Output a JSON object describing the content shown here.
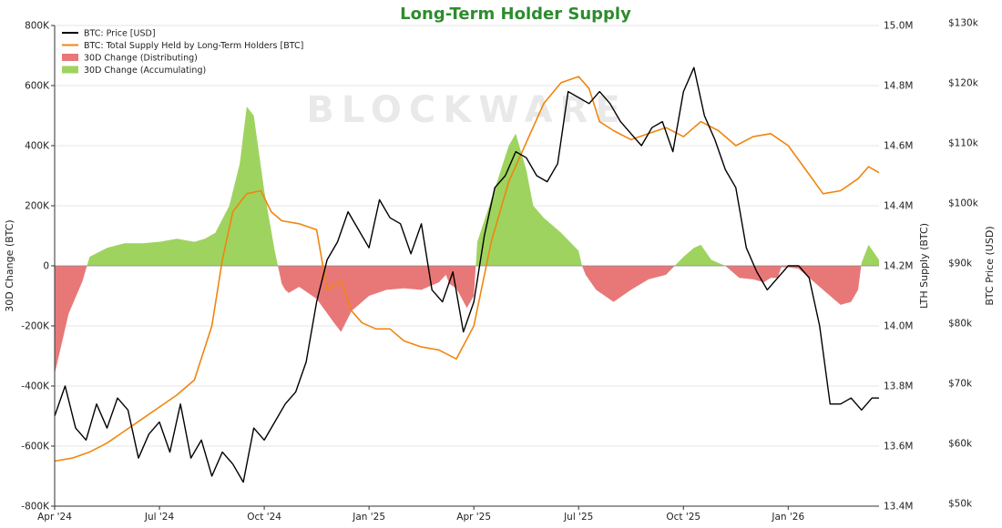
{
  "chart_data": {
    "type": "combo",
    "title": "Long-Term Holder Supply",
    "title_color": "#2e8b2e",
    "watermark": "BLOCKWARE",
    "legend": [
      {
        "label": "BTC: Price [USD]",
        "kind": "line",
        "color": "#000000"
      },
      {
        "label": "BTC: Total Supply Held by Long-Term Holders [BTC]",
        "kind": "line",
        "color": "#f0850f"
      },
      {
        "label": "30D Change (Distributing)",
        "kind": "area",
        "color": "#e87878"
      },
      {
        "label": "30D Change (Accumulating)",
        "kind": "area",
        "color": "#9fd35f"
      }
    ],
    "x_tick_labels": [
      "Apr '24",
      "Jul '24",
      "Oct '24",
      "Jan '25",
      "Apr '25",
      "Jul '25",
      "Oct '25",
      "Jan '26"
    ],
    "x_tick_months": [
      0,
      3,
      6,
      9,
      12,
      15,
      18,
      21
    ],
    "x_range_months": [
      0,
      23.6
    ],
    "left_axis": {
      "label": "30D Change (BTC)",
      "ylim": [
        -800000,
        800000
      ],
      "ticks": [
        800000,
        600000,
        400000,
        200000,
        0,
        -200000,
        -400000,
        -600000,
        -800000
      ],
      "tick_labels": [
        "800K",
        "600K",
        "400K",
        "200K",
        "0",
        "-200K",
        "-400K",
        "-600K",
        "-800K"
      ]
    },
    "mid_axis": {
      "label": "LTH Supply (BTC)",
      "ylim": [
        13.4,
        15.0
      ],
      "ticks": [
        15.0,
        14.8,
        14.6,
        14.4,
        14.2,
        14.0,
        13.8,
        13.6,
        13.4
      ],
      "tick_labels": [
        "15.0M",
        "14.8M",
        "14.6M",
        "14.4M",
        "14.2M",
        "14.0M",
        "13.8M",
        "13.6M",
        "13.4M"
      ]
    },
    "right_axis": {
      "label": "BTC Price (USD)",
      "ylim": [
        50000,
        130000
      ],
      "ticks": [
        130000,
        120000,
        110000,
        100000,
        90000,
        80000,
        70000,
        60000,
        50000
      ],
      "tick_labels": [
        "$130k",
        "$120k",
        "$110k",
        "$100k",
        "$90k",
        "$80k",
        "$70k",
        "$60k",
        "$50k"
      ]
    },
    "series": [
      {
        "name": "BTC: Price [USD]",
        "axis": "right",
        "color": "#000000",
        "x": [
          0,
          0.3,
          0.6,
          0.9,
          1.2,
          1.5,
          1.8,
          2.1,
          2.4,
          2.7,
          3.0,
          3.3,
          3.6,
          3.9,
          4.2,
          4.5,
          4.8,
          5.1,
          5.4,
          5.7,
          6.0,
          6.3,
          6.6,
          6.9,
          7.2,
          7.5,
          7.8,
          8.1,
          8.4,
          8.7,
          9.0,
          9.3,
          9.6,
          9.9,
          10.2,
          10.5,
          10.8,
          11.1,
          11.4,
          11.7,
          12.0,
          12.3,
          12.6,
          12.9,
          13.2,
          13.5,
          13.8,
          14.1,
          14.4,
          14.7,
          15.0,
          15.3,
          15.6,
          15.9,
          16.2,
          16.5,
          16.8,
          17.1,
          17.4,
          17.7,
          18.0,
          18.3,
          18.6,
          18.9,
          19.2,
          19.5,
          19.8,
          20.1,
          20.4,
          20.7,
          21.0,
          21.3,
          21.6,
          21.9,
          22.2,
          22.5,
          22.8,
          23.1,
          23.4,
          23.6
        ],
        "values": [
          65000,
          70000,
          63000,
          61000,
          67000,
          63000,
          68000,
          66000,
          58000,
          62000,
          64000,
          59000,
          67000,
          58000,
          61000,
          55000,
          59000,
          57000,
          54000,
          63000,
          61000,
          64000,
          67000,
          69000,
          74000,
          84000,
          91000,
          94000,
          99000,
          96000,
          93000,
          101000,
          98000,
          97000,
          92000,
          97000,
          86000,
          84000,
          89000,
          79000,
          84000,
          95000,
          103000,
          105000,
          109000,
          108000,
          105000,
          104000,
          107000,
          119000,
          118000,
          117000,
          119000,
          117000,
          114000,
          112000,
          110000,
          113000,
          114000,
          109000,
          119000,
          123000,
          115000,
          111000,
          106000,
          103000,
          93000,
          89000,
          86000,
          88000,
          90000,
          90000,
          88000,
          80000,
          67000,
          67000,
          68000,
          66000,
          68000,
          68000
        ]
      },
      {
        "name": "BTC: Total Supply Held by Long-Term Holders [BTC]",
        "axis": "mid",
        "color": "#f0850f",
        "x": [
          0,
          0.5,
          1.0,
          1.5,
          2.0,
          2.5,
          3.0,
          3.5,
          4.0,
          4.5,
          4.8,
          5.1,
          5.5,
          5.9,
          6.2,
          6.5,
          7.0,
          7.5,
          7.8,
          8.2,
          8.5,
          8.8,
          9.2,
          9.6,
          10.0,
          10.5,
          11.0,
          11.5,
          12.0,
          12.5,
          13.0,
          13.5,
          14.0,
          14.5,
          15.0,
          15.3,
          15.6,
          16.0,
          16.5,
          17.0,
          17.5,
          18.0,
          18.5,
          19.0,
          19.5,
          20.0,
          20.5,
          21.0,
          21.5,
          22.0,
          22.5,
          23.0,
          23.3,
          23.6
        ],
        "values": [
          13.55,
          13.56,
          13.58,
          13.61,
          13.65,
          13.69,
          13.73,
          13.77,
          13.82,
          14.0,
          14.22,
          14.38,
          14.44,
          14.45,
          14.38,
          14.35,
          14.34,
          14.32,
          14.12,
          14.15,
          14.05,
          14.01,
          13.99,
          13.99,
          13.95,
          13.93,
          13.92,
          13.89,
          14.0,
          14.28,
          14.48,
          14.61,
          14.74,
          14.81,
          14.83,
          14.79,
          14.68,
          14.65,
          14.62,
          14.64,
          14.66,
          14.63,
          14.68,
          14.65,
          14.6,
          14.63,
          14.64,
          14.6,
          14.52,
          14.44,
          14.45,
          14.49,
          14.53,
          14.51
        ]
      },
      {
        "name": "30D Change",
        "axis": "left",
        "positive_color": "#9fd35f",
        "negative_color": "#e87878",
        "x": [
          0,
          0.4,
          0.8,
          0.9,
          1.0,
          1.5,
          2.0,
          2.5,
          3.0,
          3.5,
          4.0,
          4.3,
          4.6,
          5.0,
          5.3,
          5.5,
          5.7,
          6.0,
          6.3,
          6.5,
          6.6,
          6.7,
          7.0,
          7.5,
          8.0,
          8.2,
          8.5,
          8.8,
          9.0,
          9.5,
          10.0,
          10.5,
          11.0,
          11.2,
          11.3,
          11.5,
          11.8,
          12.0,
          12.1,
          12.5,
          13.0,
          13.2,
          13.5,
          13.7,
          14.0,
          14.5,
          15.0,
          15.1,
          15.2,
          15.5,
          16.0,
          16.5,
          17.0,
          17.5,
          18.0,
          18.3,
          18.5,
          18.8,
          19.0,
          19.2,
          19.4,
          19.6,
          20.0,
          20.3,
          20.5,
          20.7,
          20.8,
          21.0,
          21.3,
          21.6,
          22.0,
          22.2,
          22.5,
          22.8,
          23.0,
          23.1,
          23.3,
          23.6
        ],
        "values": [
          -360000,
          -160000,
          -50000,
          -10000,
          30000,
          60000,
          75000,
          75000,
          80000,
          90000,
          80000,
          90000,
          110000,
          200000,
          340000,
          530000,
          500000,
          250000,
          50000,
          -60000,
          -80000,
          -90000,
          -70000,
          -110000,
          -190000,
          -220000,
          -150000,
          -120000,
          -100000,
          -80000,
          -75000,
          -80000,
          -55000,
          -30000,
          -60000,
          -75000,
          -140000,
          -100000,
          80000,
          220000,
          400000,
          440000,
          320000,
          200000,
          160000,
          110000,
          50000,
          0,
          -30000,
          -80000,
          -120000,
          -80000,
          -45000,
          -30000,
          30000,
          60000,
          70000,
          20000,
          10000,
          0,
          -20000,
          -40000,
          -45000,
          -55000,
          -40000,
          -40000,
          -5000,
          -5000,
          -10000,
          -40000,
          -80000,
          -100000,
          -130000,
          -120000,
          -80000,
          10000,
          70000,
          20000
        ]
      }
    ]
  }
}
